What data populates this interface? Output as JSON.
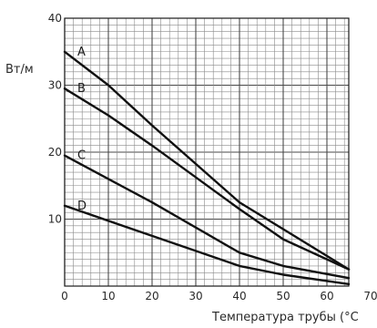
{
  "chart_data": {
    "type": "line",
    "title": "",
    "xlabel": "Температура трубы (°C",
    "ylabel": "Вт/м",
    "xlim": [
      0,
      65
    ],
    "ylim": [
      0,
      40
    ],
    "x_ticks": [
      "0",
      "10",
      "20",
      "30",
      "40",
      "50",
      "60",
      "70"
    ],
    "y_ticks": [
      "10",
      "20",
      "30",
      "40"
    ],
    "grid": true,
    "series": [
      {
        "name": "A",
        "x": [
          0,
          10,
          20,
          40,
          50,
          65
        ],
        "y": [
          35,
          30,
          24,
          12.5,
          8.5,
          2.5
        ]
      },
      {
        "name": "B",
        "x": [
          0,
          10,
          20,
          40,
          50,
          65
        ],
        "y": [
          29.5,
          25.5,
          21,
          11.5,
          7,
          2.5
        ]
      },
      {
        "name": "C",
        "x": [
          0,
          20,
          40,
          50,
          65
        ],
        "y": [
          19.5,
          12.5,
          5,
          3,
          1.2
        ]
      },
      {
        "name": "D",
        "x": [
          0,
          20,
          40,
          50,
          65
        ],
        "y": [
          12,
          7.5,
          3,
          1.7,
          0.3
        ]
      }
    ]
  }
}
